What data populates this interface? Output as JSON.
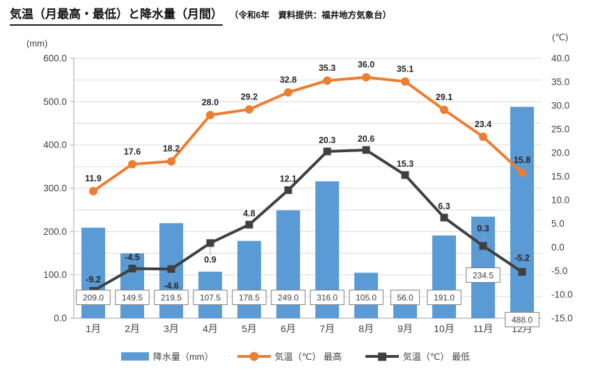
{
  "header": {
    "title": "気温（月最高・最低）と降水量（月間）",
    "subtitle": "（令和6年　資料提供：福井地方気象台）"
  },
  "chart_data": {
    "type": "combo",
    "categories": [
      "1月",
      "2月",
      "3月",
      "4月",
      "5月",
      "6月",
      "7月",
      "8月",
      "9月",
      "10月",
      "11月",
      "12月"
    ],
    "series": [
      {
        "name": "降水量（mm）",
        "type": "bar",
        "color": "#5B9BD5",
        "values": [
          209.0,
          149.5,
          219.5,
          107.5,
          178.5,
          249.0,
          316.0,
          105.0,
          56.0,
          191.0,
          234.5,
          488.0
        ]
      },
      {
        "name": "気温（℃） 最高",
        "type": "line",
        "marker": "circle",
        "color": "#ED7D31",
        "values": [
          11.9,
          17.6,
          18.2,
          28.0,
          29.2,
          32.8,
          35.3,
          36.0,
          35.1,
          29.1,
          23.4,
          15.8
        ]
      },
      {
        "name": "気温（℃） 最低",
        "type": "line",
        "marker": "square",
        "color": "#404040",
        "values": [
          -9.2,
          -4.5,
          -4.6,
          0.9,
          4.8,
          12.1,
          20.3,
          20.6,
          15.3,
          6.3,
          0.3,
          -5.2
        ]
      }
    ],
    "left_axis": {
      "unit": "(mm)",
      "min": 0,
      "max": 600,
      "major": 100,
      "minor": 50
    },
    "right_axis": {
      "unit": "(℃)",
      "min": -15,
      "max": 40,
      "major": 5
    },
    "grid": true,
    "legend_position": "bottom"
  }
}
